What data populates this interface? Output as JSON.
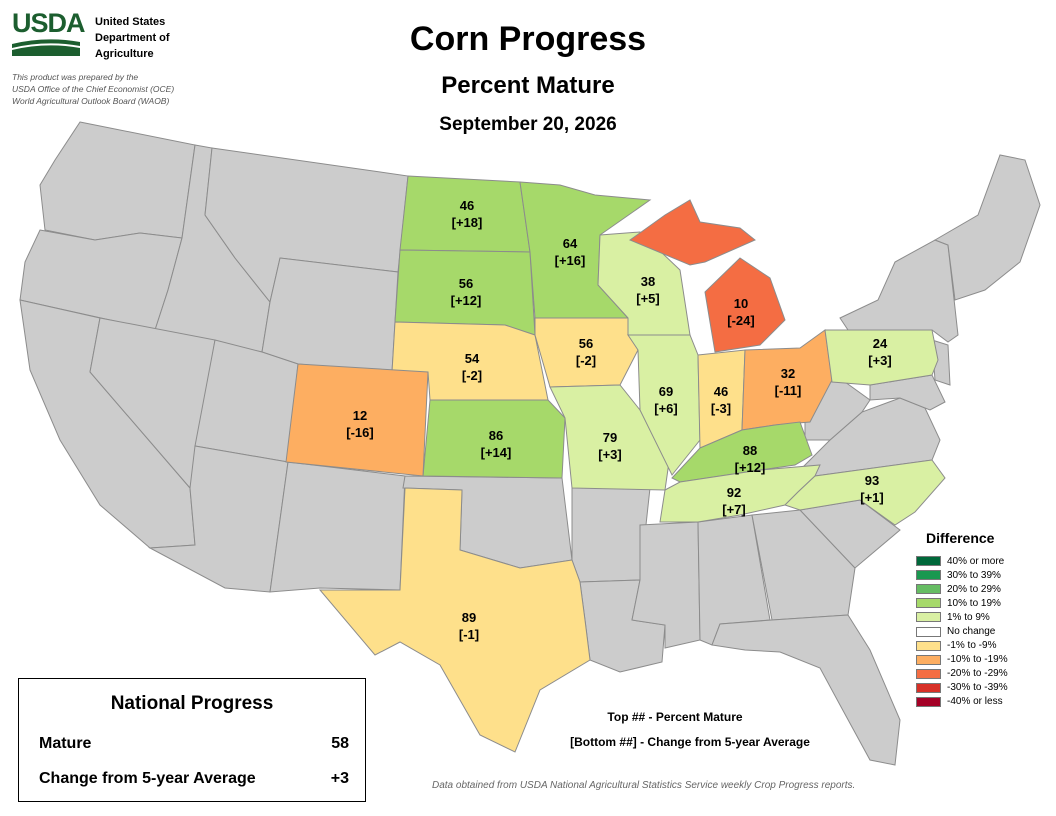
{
  "header": {
    "agency_abbrev": "USDA",
    "agency_name_lines": [
      "United States",
      "Department of",
      "Agriculture"
    ],
    "prepared_note_lines": [
      "This product was prepared by the",
      "USDA Office of the Chief Economist (OCE)",
      "World Agricultural Outlook Board (WAOB)"
    ],
    "title": "Corn Progress",
    "subtitle": "Percent Mature",
    "date": "September 20, 2026"
  },
  "states": [
    {
      "state": "ND",
      "mature": "46",
      "change": "[+18]",
      "color": "#a6d96a"
    },
    {
      "state": "MN",
      "mature": "64",
      "change": "[+16]",
      "color": "#a6d96a"
    },
    {
      "state": "SD",
      "mature": "56",
      "change": "[+12]",
      "color": "#a6d96a"
    },
    {
      "state": "WI",
      "mature": "38",
      "change": "[+5]",
      "color": "#d9f0a3"
    },
    {
      "state": "MI",
      "mature": "10",
      "change": "[-24]",
      "color": "#f46d43"
    },
    {
      "state": "NE",
      "mature": "54",
      "change": "[-2]",
      "color": "#fee08b"
    },
    {
      "state": "IA",
      "mature": "56",
      "change": "[-2]",
      "color": "#fee08b"
    },
    {
      "state": "PA",
      "mature": "24",
      "change": "[+3]",
      "color": "#d9f0a3"
    },
    {
      "state": "CO",
      "mature": "12",
      "change": "[-16]",
      "color": "#fdae61"
    },
    {
      "state": "IL",
      "mature": "69",
      "change": "[+6]",
      "color": "#d9f0a3"
    },
    {
      "state": "IN",
      "mature": "46",
      "change": "[-3]",
      "color": "#fee08b"
    },
    {
      "state": "OH",
      "mature": "32",
      "change": "[-11]",
      "color": "#fdae61"
    },
    {
      "state": "KS",
      "mature": "86",
      "change": "[+14]",
      "color": "#a6d96a"
    },
    {
      "state": "MO",
      "mature": "79",
      "change": "[+3]",
      "color": "#d9f0a3"
    },
    {
      "state": "KY",
      "mature": "88",
      "change": "[+12]",
      "color": "#a6d96a"
    },
    {
      "state": "TN",
      "mature": "92",
      "change": "[+7]",
      "color": "#d9f0a3"
    },
    {
      "state": "NC",
      "mature": "93",
      "change": "[+1]",
      "color": "#d9f0a3"
    },
    {
      "state": "TX",
      "mature": "89",
      "change": "[-1]",
      "color": "#fee08b"
    }
  ],
  "legend": {
    "title": "Difference",
    "items": [
      {
        "label": "40% or more",
        "color": "#00683a"
      },
      {
        "label": "30% to 39%",
        "color": "#1a9850"
      },
      {
        "label": "20% to 29%",
        "color": "#66bd63"
      },
      {
        "label": "10% to 19%",
        "color": "#a6d96a"
      },
      {
        "label": "1% to 9%",
        "color": "#d9f0a3"
      },
      {
        "label": "No change",
        "color": "#ffffff"
      },
      {
        "label": "-1% to -9%",
        "color": "#fee08b"
      },
      {
        "label": "-10% to -19%",
        "color": "#fdae61"
      },
      {
        "label": "-20% to -29%",
        "color": "#f46d43"
      },
      {
        "label": "-30% to -39%",
        "color": "#d73027"
      },
      {
        "label": "-40% or less",
        "color": "#a50026"
      }
    ]
  },
  "national": {
    "title": "National Progress",
    "mature_label": "Mature",
    "mature_value": "58",
    "change_label": "Change from 5-year Average",
    "change_value": "+3"
  },
  "key": {
    "top": "Top ## - Percent Mature",
    "bottom": "[Bottom ##] - Change from 5-year Average"
  },
  "source_note": "Data obtained from USDA National Agricultural Statistics Service weekly Crop Progress reports.",
  "colors": {
    "background_state": "#cccccc",
    "state_border": "#8c8c8c"
  }
}
